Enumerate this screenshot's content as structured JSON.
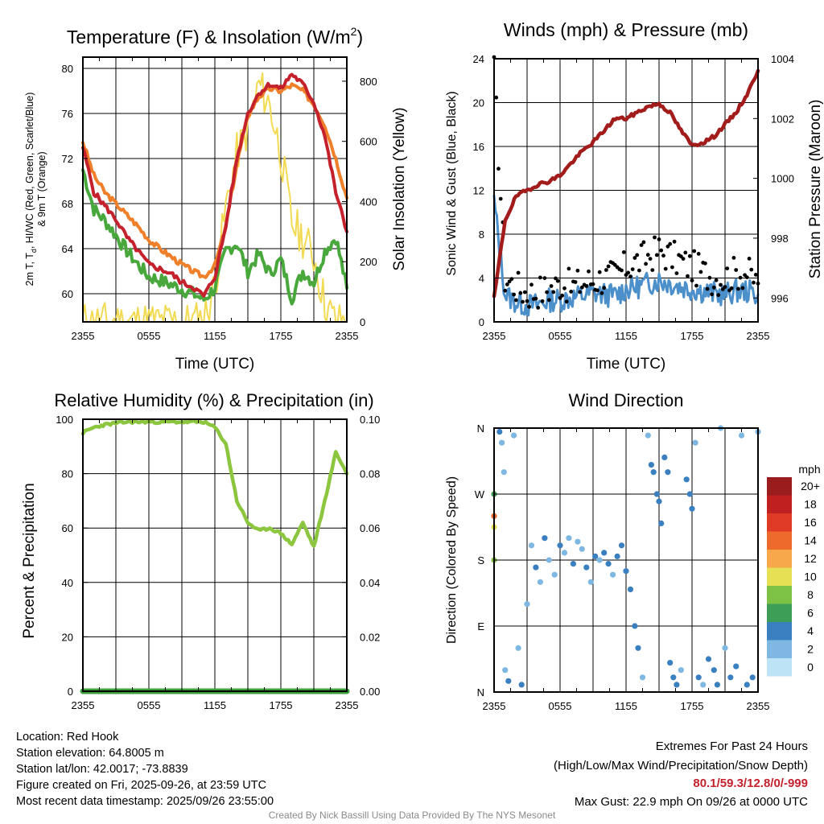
{
  "charts": {
    "ticks": [
      "2355",
      "0555",
      "1155",
      "1755",
      "2355"
    ],
    "temp_panel": {
      "title": "Temperature (F) & Insolation (W/m",
      "title_sup": "2",
      "title_close": ")",
      "ylabel_left_line1": "2m T, T",
      "ylabel_left_sub": "d",
      "ylabel_left_line1_rest": ", HI/WC (Red, Green, Scarlet/Blue)",
      "ylabel_left_line2": "& 9m T (Orange)",
      "ylabel_right": "Solar Insolation (Yellow)",
      "xlabel": "Time (UTC)",
      "left_ticks": [
        "60",
        "64",
        "68",
        "72",
        "76",
        "80"
      ],
      "right_ticks": [
        "0",
        "200",
        "400",
        "600",
        "800"
      ]
    },
    "wind_panel": {
      "title": "Winds (mph) & Pressure (mb)",
      "ylabel_left": "Sonic Wind & Gust (Blue, Black)",
      "ylabel_right": "Station Pressure (Maroon)",
      "xlabel": "Time (UTC)",
      "left_ticks": [
        "0",
        "4",
        "8",
        "12",
        "16",
        "20",
        "24"
      ],
      "right_ticks": [
        "996",
        "998",
        "1000",
        "1002",
        "1004"
      ]
    },
    "rh_panel": {
      "title": "Relative Humidity (%) & Precipitation (in)",
      "ylabel_left": "Percent & Precipitation",
      "left_ticks": [
        "0",
        "20",
        "40",
        "60",
        "80",
        "100"
      ],
      "right_ticks": [
        "0.00",
        "0.02",
        "0.04",
        "0.06",
        "0.08",
        "0.10"
      ]
    },
    "dir_panel": {
      "title": "Wind Direction",
      "ylabel_left": "Direction (Colored By Speed)",
      "dir_ticks": [
        "N",
        "E",
        "S",
        "W",
        "N"
      ],
      "legend_title": "mph",
      "legend_labels": [
        "20+",
        "18",
        "16",
        "14",
        "12",
        "10",
        "8",
        "6",
        "4",
        "2",
        "0"
      ],
      "legend_colors": [
        "#9b1c1c",
        "#c0201f",
        "#de3a26",
        "#ee6a2c",
        "#f7a84a",
        "#e6e055",
        "#7dc245",
        "#3d9e58",
        "#3a7fbf",
        "#7db7e2",
        "#bde3f6"
      ]
    }
  },
  "footer": {
    "location": "Location: Red Hook",
    "elevation": "Station elevation: 64.8005 m",
    "latlon": "Station lat/lon: 42.0017; -73.8839",
    "created": "Figure created on Fri, 2025-09-26, at 23:59 UTC",
    "recent": "Most recent data timestamp: 2025/09/26 23:55:00",
    "extremes_title": "Extremes For Past 24 Hours",
    "extremes_sub": "(High/Low/Max Wind/Precipitation/Snow Depth)",
    "extremes_values": "80.1/59.3/12.8/0/-999",
    "max_gust": "Max Gust: 22.9 mph On 09/26 at 0000 UTC",
    "credit": "Created By Nick Bassill Using Data Provided By The NYS Mesonet"
  },
  "chart_data": [
    {
      "type": "line",
      "title": "Temperature (F) & Insolation (W/m2)",
      "xlabel": "Time (UTC)",
      "ylabel": "2m T, Td, HI/WC (Red, Green, Scarlet/Blue) & 9m T (Orange)",
      "ylabel_right": "Solar Insolation (Yellow)",
      "x_hours": [
        0,
        1,
        2,
        3,
        4,
        5,
        6,
        7,
        8,
        9,
        10,
        11,
        12,
        13,
        14,
        15,
        16,
        17,
        18,
        19,
        20,
        21,
        22,
        23,
        24
      ],
      "xlim": [
        0,
        24
      ],
      "ylim": [
        57.5,
        81
      ],
      "ylim_right": [
        0,
        880
      ],
      "series": [
        {
          "name": "2m T",
          "color": "#c4212c",
          "axis": "left",
          "values": [
            73.0,
            69.0,
            67.8,
            66.6,
            65.0,
            63.8,
            62.6,
            62.2,
            61.8,
            61.0,
            60.6,
            59.8,
            61.5,
            66.0,
            72.0,
            76.0,
            77.8,
            78.6,
            78.2,
            79.5,
            78.6,
            77.0,
            74.0,
            69.0,
            65.5
          ]
        },
        {
          "name": "9m T",
          "color": "#f07f2a",
          "axis": "left",
          "values": [
            73.5,
            70.5,
            69.0,
            68.0,
            67.0,
            66.0,
            64.8,
            64.0,
            63.3,
            62.6,
            62.0,
            61.5,
            62.5,
            66.0,
            71.5,
            75.8,
            77.5,
            78.2,
            78.0,
            78.5,
            78.0,
            76.8,
            75.0,
            72.0,
            68.5
          ]
        },
        {
          "name": "Td",
          "color": "#48a83c",
          "axis": "left",
          "values": [
            71.0,
            67.5,
            66.5,
            65.2,
            63.8,
            62.6,
            61.5,
            61.2,
            60.8,
            60.4,
            60.0,
            59.5,
            60.5,
            63.8,
            64.5,
            62.0,
            63.5,
            61.8,
            63.0,
            59.6,
            62.0,
            61.0,
            63.8,
            65.0,
            60.5
          ]
        },
        {
          "name": "Insolation",
          "color": "#f2db52",
          "axis": "right",
          "values": [
            0,
            0,
            0,
            0,
            0,
            0,
            0,
            0,
            0,
            0,
            0,
            10,
            120,
            380,
            560,
            640,
            790,
            720,
            560,
            330,
            280,
            220,
            60,
            0,
            0
          ]
        }
      ]
    },
    {
      "type": "line",
      "title": "Winds (mph) & Pressure (mb)",
      "xlabel": "Time (UTC)",
      "ylabel": "Sonic Wind & Gust (Blue, Black)",
      "ylabel_right": "Station Pressure (Maroon)",
      "x_hours": [
        0,
        1,
        2,
        3,
        4,
        5,
        6,
        7,
        8,
        9,
        10,
        11,
        12,
        13,
        14,
        15,
        16,
        17,
        18,
        19,
        20,
        21,
        22,
        23,
        24
      ],
      "xlim": [
        0,
        24
      ],
      "ylim": [
        0,
        24
      ],
      "ylim_right": [
        995.2,
        1004
      ],
      "series": [
        {
          "name": "Sonic Wind",
          "color": "#4b8fcb",
          "axis": "left",
          "values": [
            11.0,
            2.5,
            1.8,
            1.5,
            1.6,
            2.0,
            2.0,
            2.2,
            2.4,
            2.6,
            2.5,
            2.4,
            3.0,
            3.2,
            3.5,
            3.8,
            3.5,
            3.2,
            3.0,
            2.8,
            2.6,
            2.5,
            2.8,
            2.8,
            2.5
          ]
        },
        {
          "name": "Gust",
          "color": "#000000",
          "axis": "left",
          "values": [
            22.9,
            4.0,
            3.2,
            2.6,
            2.8,
            3.0,
            3.5,
            3.2,
            3.5,
            3.8,
            4.0,
            4.2,
            5.0,
            5.5,
            6.0,
            6.5,
            6.0,
            5.5,
            5.0,
            4.5,
            4.0,
            4.0,
            4.5,
            4.5,
            3.5
          ]
        },
        {
          "name": "Pressure",
          "color": "#a21c1c",
          "axis": "right",
          "values": [
            996.0,
            998.6,
            999.4,
            999.6,
            999.8,
            999.9,
            1000.1,
            1000.5,
            1000.9,
            1001.2,
            1001.6,
            1002.0,
            1002.0,
            1002.2,
            1002.4,
            1002.5,
            1002.2,
            1001.6,
            1001.1,
            1001.2,
            1001.4,
            1001.8,
            1002.2,
            1002.8,
            1003.6
          ]
        }
      ]
    },
    {
      "type": "line",
      "title": "Relative Humidity (%) & Precipitation (in)",
      "xlabel": "",
      "ylabel": "Percent & Precipitation",
      "x_hours": [
        0,
        1,
        2,
        3,
        4,
        5,
        6,
        7,
        8,
        9,
        10,
        11,
        12,
        13,
        14,
        15,
        16,
        17,
        18,
        19,
        20,
        21,
        22,
        23,
        24
      ],
      "xlim": [
        0,
        24
      ],
      "ylim": [
        0,
        100
      ],
      "ylim_right": [
        0,
        0.1
      ],
      "series": [
        {
          "name": "Relative Humidity",
          "color": "#8cc63f",
          "axis": "left",
          "values": [
            95,
            97,
            98,
            98.5,
            99,
            99,
            99,
            99,
            99,
            99,
            99,
            99,
            97,
            91,
            70,
            62,
            59,
            60,
            58,
            54,
            62,
            53,
            70,
            88,
            80
          ]
        },
        {
          "name": "Precipitation",
          "color": "#3ba03b",
          "axis": "right",
          "values": [
            0,
            0,
            0,
            0,
            0,
            0,
            0,
            0,
            0,
            0,
            0,
            0,
            0,
            0,
            0,
            0,
            0,
            0,
            0,
            0,
            0,
            0,
            0,
            0,
            0
          ]
        }
      ]
    },
    {
      "type": "scatter",
      "title": "Wind Direction",
      "xlabel": "",
      "ylabel": "Direction (Colored By Speed)",
      "y_categories": [
        "N",
        "E",
        "S",
        "W",
        "N"
      ],
      "xlim": [
        0,
        24
      ],
      "ylim": [
        0,
        360
      ],
      "legend_title": "mph",
      "points": [
        {
          "x": 0.0,
          "y": 270,
          "speed": 6
        },
        {
          "x": 0.0,
          "y": 240,
          "speed": 13
        },
        {
          "x": 0.0,
          "y": 225,
          "speed": 10
        },
        {
          "x": 0.0,
          "y": 180,
          "speed": 7
        },
        {
          "x": 0.5,
          "y": 355,
          "speed": 3
        },
        {
          "x": 0.7,
          "y": 340,
          "speed": 2
        },
        {
          "x": 0.9,
          "y": 300,
          "speed": 2
        },
        {
          "x": 1.0,
          "y": 30,
          "speed": 2
        },
        {
          "x": 1.3,
          "y": 15,
          "speed": 3
        },
        {
          "x": 1.8,
          "y": 350,
          "speed": 1
        },
        {
          "x": 2.2,
          "y": 60,
          "speed": 2
        },
        {
          "x": 2.5,
          "y": 10,
          "speed": 3
        },
        {
          "x": 3.0,
          "y": 120,
          "speed": 1
        },
        {
          "x": 3.4,
          "y": 200,
          "speed": 2
        },
        {
          "x": 3.8,
          "y": 170,
          "speed": 3
        },
        {
          "x": 4.2,
          "y": 150,
          "speed": 2
        },
        {
          "x": 4.6,
          "y": 210,
          "speed": 3
        },
        {
          "x": 5.0,
          "y": 180,
          "speed": 2
        },
        {
          "x": 5.5,
          "y": 160,
          "speed": 2
        },
        {
          "x": 6.0,
          "y": 200,
          "speed": 3
        },
        {
          "x": 6.4,
          "y": 190,
          "speed": 2
        },
        {
          "x": 6.8,
          "y": 210,
          "speed": 2
        },
        {
          "x": 7.2,
          "y": 175,
          "speed": 3
        },
        {
          "x": 7.6,
          "y": 205,
          "speed": 2
        },
        {
          "x": 8.0,
          "y": 195,
          "speed": 2
        },
        {
          "x": 8.4,
          "y": 170,
          "speed": 3
        },
        {
          "x": 8.8,
          "y": 150,
          "speed": 2
        },
        {
          "x": 9.2,
          "y": 185,
          "speed": 3
        },
        {
          "x": 9.6,
          "y": 180,
          "speed": 2
        },
        {
          "x": 10.0,
          "y": 190,
          "speed": 4
        },
        {
          "x": 10.4,
          "y": 175,
          "speed": 3
        },
        {
          "x": 10.8,
          "y": 160,
          "speed": 2
        },
        {
          "x": 11.2,
          "y": 185,
          "speed": 3
        },
        {
          "x": 11.6,
          "y": 200,
          "speed": 4
        },
        {
          "x": 12.0,
          "y": 165,
          "speed": 3
        },
        {
          "x": 12.4,
          "y": 140,
          "speed": 4
        },
        {
          "x": 12.8,
          "y": 90,
          "speed": 3
        },
        {
          "x": 13.1,
          "y": 60,
          "speed": 3
        },
        {
          "x": 13.5,
          "y": 20,
          "speed": 2
        },
        {
          "x": 14.0,
          "y": 350,
          "speed": 1
        },
        {
          "x": 14.3,
          "y": 310,
          "speed": 4
        },
        {
          "x": 14.5,
          "y": 300,
          "speed": 4
        },
        {
          "x": 14.8,
          "y": 270,
          "speed": 3
        },
        {
          "x": 15.0,
          "y": 260,
          "speed": 4
        },
        {
          "x": 15.2,
          "y": 230,
          "speed": 3
        },
        {
          "x": 15.5,
          "y": 320,
          "speed": 4
        },
        {
          "x": 15.8,
          "y": 300,
          "speed": 4
        },
        {
          "x": 16.0,
          "y": 40,
          "speed": 3
        },
        {
          "x": 16.3,
          "y": 20,
          "speed": 4
        },
        {
          "x": 16.6,
          "y": 10,
          "speed": 3
        },
        {
          "x": 17.0,
          "y": 30,
          "speed": 2
        },
        {
          "x": 17.5,
          "y": 290,
          "speed": 4
        },
        {
          "x": 17.8,
          "y": 270,
          "speed": 4
        },
        {
          "x": 18.0,
          "y": 250,
          "speed": 3
        },
        {
          "x": 18.3,
          "y": 340,
          "speed": 2
        },
        {
          "x": 18.6,
          "y": 20,
          "speed": 4
        },
        {
          "x": 19.0,
          "y": 10,
          "speed": 2
        },
        {
          "x": 19.5,
          "y": 45,
          "speed": 3
        },
        {
          "x": 20.0,
          "y": 30,
          "speed": 4
        },
        {
          "x": 20.3,
          "y": 10,
          "speed": 3
        },
        {
          "x": 20.6,
          "y": 360,
          "speed": 2
        },
        {
          "x": 21.0,
          "y": 60,
          "speed": 2
        },
        {
          "x": 21.5,
          "y": 20,
          "speed": 3
        },
        {
          "x": 22.0,
          "y": 35,
          "speed": 4
        },
        {
          "x": 22.5,
          "y": 350,
          "speed": 1
        },
        {
          "x": 23.0,
          "y": 10,
          "speed": 3
        },
        {
          "x": 23.5,
          "y": 20,
          "speed": 4
        },
        {
          "x": 24.0,
          "y": 355,
          "speed": 2
        }
      ]
    }
  ]
}
